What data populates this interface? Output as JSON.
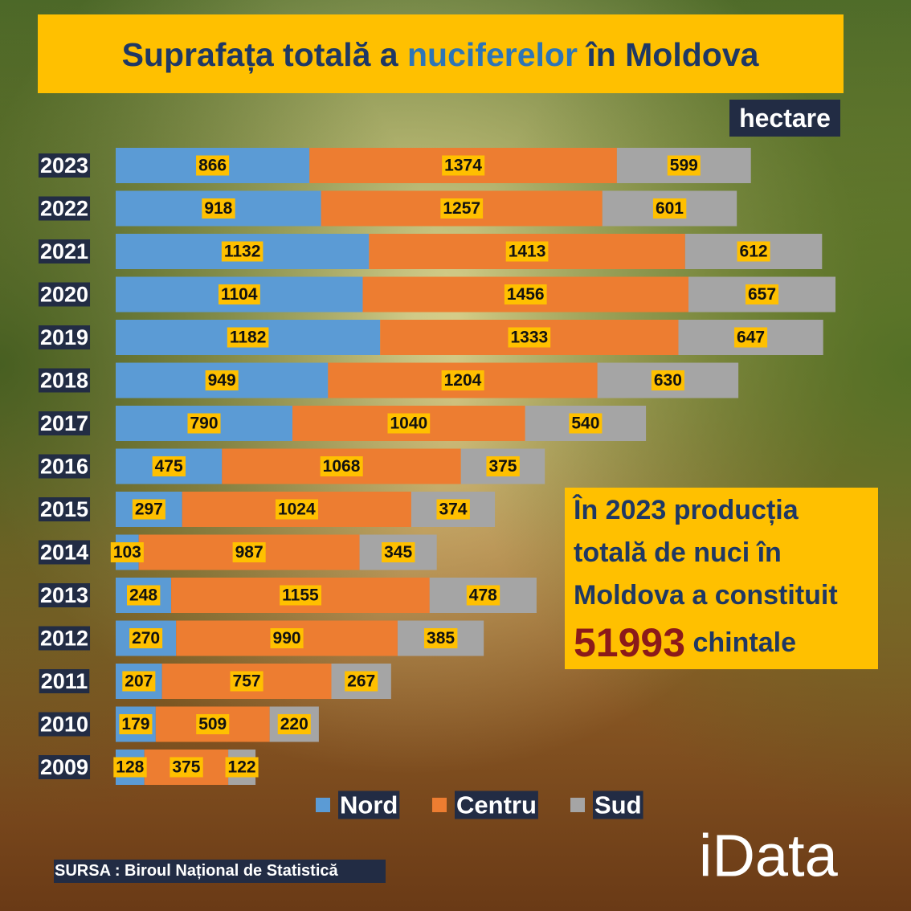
{
  "chart_data": {
    "type": "stacked-bar-horizontal",
    "title_parts": [
      "Suprafața totală a",
      "nuciferelor",
      "în Moldova"
    ],
    "unit": "hectare",
    "categories": [
      "2023",
      "2022",
      "2021",
      "2020",
      "2019",
      "2018",
      "2017",
      "2016",
      "2015",
      "2014",
      "2013",
      "2012",
      "2011",
      "2010",
      "2009"
    ],
    "series": [
      {
        "name": "Nord",
        "color": "#5b9bd5",
        "values": [
          866,
          918,
          1132,
          1104,
          1182,
          949,
          790,
          475,
          297,
          103,
          248,
          270,
          207,
          179,
          128
        ]
      },
      {
        "name": "Centru",
        "color": "#ed7d31",
        "values": [
          1374,
          1257,
          1413,
          1456,
          1333,
          1204,
          1040,
          1068,
          1024,
          987,
          1155,
          990,
          757,
          509,
          375
        ]
      },
      {
        "name": "Sud",
        "color": "#a5a5a5",
        "values": [
          599,
          601,
          612,
          657,
          647,
          630,
          540,
          375,
          374,
          345,
          478,
          385,
          267,
          220,
          122
        ]
      }
    ],
    "annotation": {
      "lines": [
        "În 2023 producția",
        "totală de nuci în",
        "Moldova a constituit"
      ],
      "number": "51993",
      "number_unit": "chintale"
    },
    "source": "SURSA : Biroul Național de Statistică",
    "logo": "iData"
  }
}
